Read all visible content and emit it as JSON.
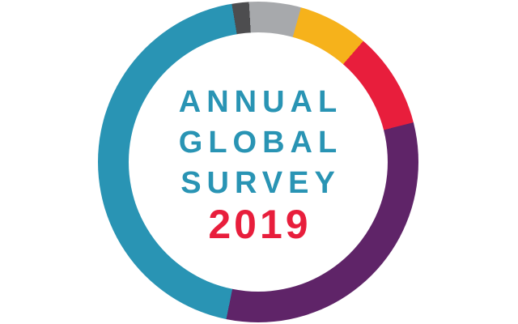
{
  "background_color": "#FFFFFF",
  "colors": {
    "teal": "#2994B4",
    "charcoal": "#4D4D4F",
    "silver": "#A7A9AC",
    "gold": "#F6B21B",
    "crimson": "#E81E3C",
    "purple": "#5F2468",
    "background": "#FFFFFF"
  },
  "center_text": {
    "lines": [
      "ANNUAL",
      "GLOBAL",
      "SURVEY"
    ],
    "year": "2019"
  },
  "chart_data": {
    "type": "pie",
    "subtype": "donut",
    "title": "ANNUAL GLOBAL SURVEY 2019",
    "legend": "none",
    "start_angle_deg": -9.5,
    "direction": "clockwise-from-top",
    "inner_radius_ratio": 0.81,
    "segments": [
      {
        "name": "charcoal-segment",
        "color": "#4D4D4F",
        "sweep_deg": 6.2,
        "percent": 1.7
      },
      {
        "name": "silver-segment",
        "color": "#A7A9AC",
        "sweep_deg": 18.8,
        "percent": 5.2
      },
      {
        "name": "gold-segment",
        "color": "#F6B21B",
        "sweep_deg": 25.5,
        "percent": 7.1
      },
      {
        "name": "crimson-segment",
        "color": "#E81E3C",
        "sweep_deg": 34.7,
        "percent": 9.6
      },
      {
        "name": "purple-segment",
        "color": "#5F2468",
        "sweep_deg": 115.8,
        "percent": 32.2
      },
      {
        "name": "teal-segment",
        "color": "#2994B4",
        "sweep_deg": 159.0,
        "percent": 44.2
      }
    ]
  }
}
